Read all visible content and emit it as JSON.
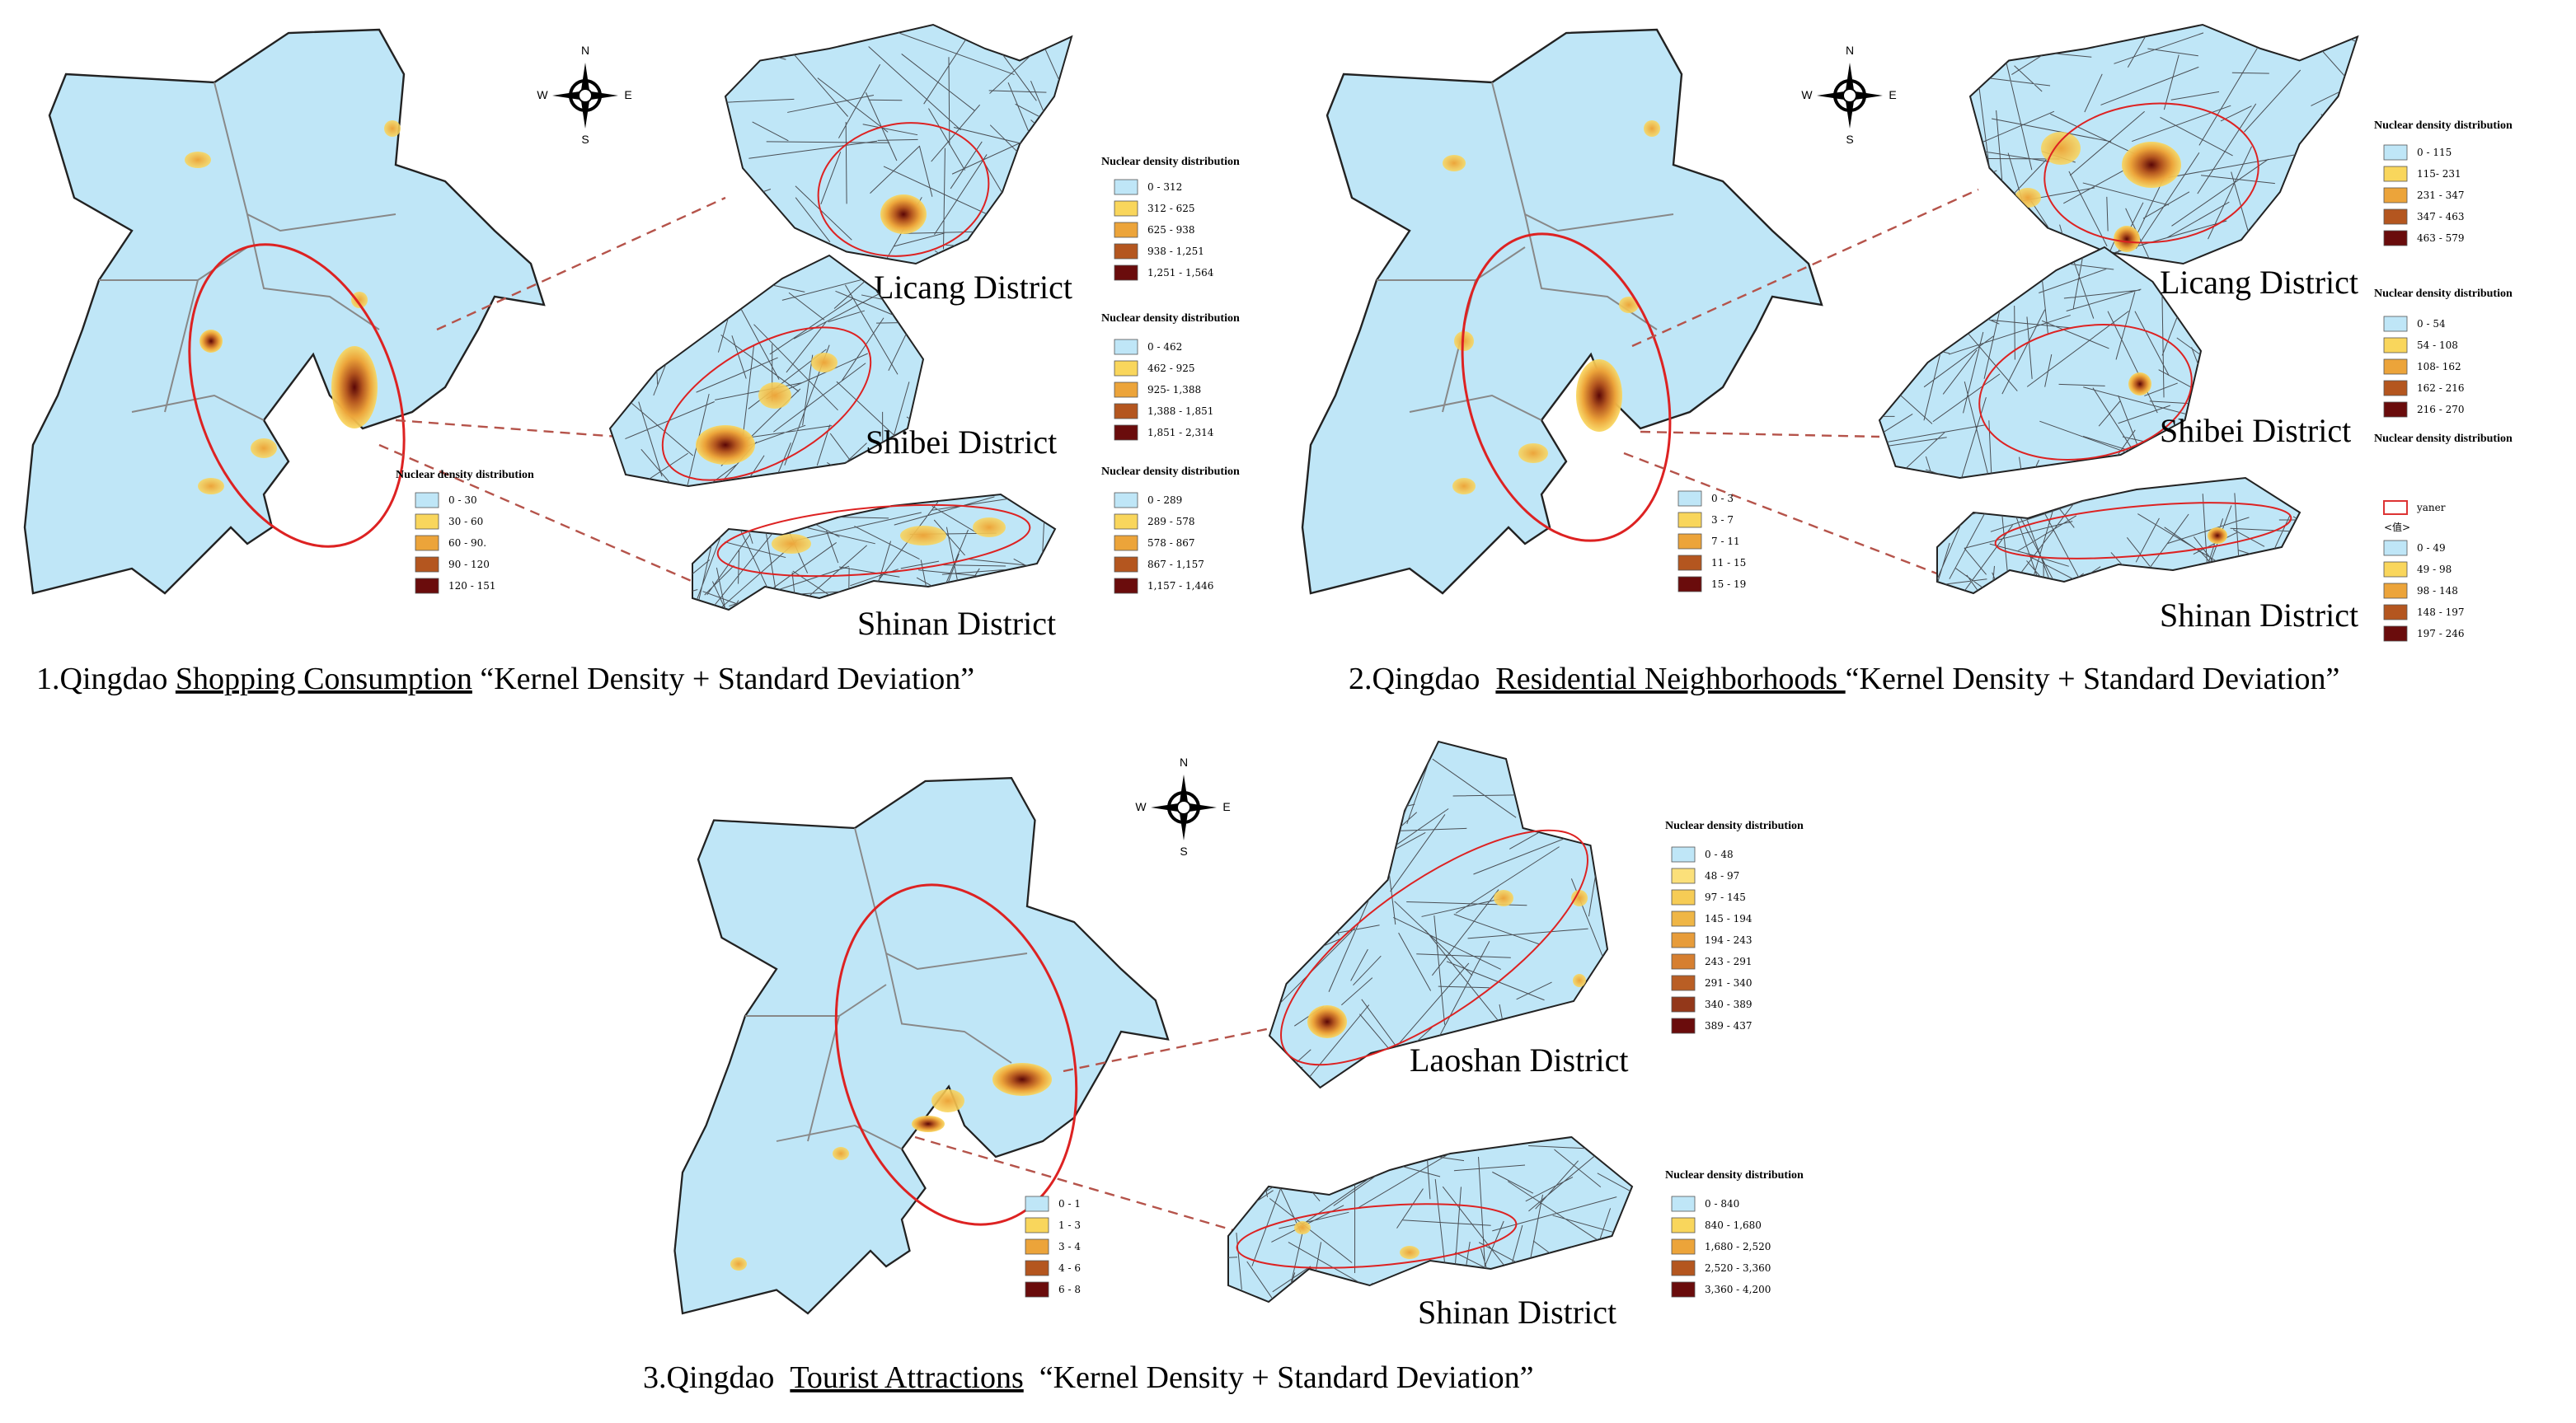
{
  "panels": [
    {
      "compass": {
        "n": "N",
        "s": "S",
        "w": "W",
        "e": "E"
      },
      "overview_legend": {
        "title": "Nuclear density distribution",
        "classes": [
          "0 - 30",
          "30 - 60",
          "60 - 90.",
          "90 - 120",
          "120 - 151"
        ]
      },
      "districts": [
        {
          "name": "Licang District",
          "legend": {
            "title": "Nuclear density distribution",
            "classes": [
              "0 - 312",
              "312 - 625",
              "625 - 938",
              "938 - 1,251",
              "1,251 - 1,564"
            ]
          }
        },
        {
          "name": "Shibei District",
          "legend": {
            "title": "Nuclear density distribution",
            "classes": [
              "0 - 462",
              "462 - 925",
              "925- 1,388",
              "1,388 - 1,851",
              "1,851 - 2,314"
            ]
          }
        },
        {
          "name": "Shinan District",
          "legend": {
            "title": "Nuclear density distribution",
            "classes": [
              "0 - 289",
              "289 - 578",
              "578 - 867",
              "867 - 1,157",
              "1,157 - 1,446"
            ]
          }
        }
      ],
      "caption": {
        "prefix": "1.Qingdao ",
        "topic": "Shopping Consumption",
        "suffix": " “Kernel Density + Standard Deviation”"
      }
    },
    {
      "compass": {
        "n": "N",
        "s": "S",
        "w": "W",
        "e": "E"
      },
      "overview_legend": {
        "classes": [
          "0 - 3",
          "3 - 7",
          "7 - 11",
          "11 - 15",
          "15 - 19"
        ]
      },
      "districts": [
        {
          "name": "Licang District",
          "legend": {
            "title": "Nuclear density distribution",
            "classes": [
              "0 - 115",
              "115- 231",
              "231 - 347",
              "347 - 463",
              "463 - 579"
            ]
          }
        },
        {
          "name": "Shibei District",
          "legend": {
            "title": "Nuclear density distribution",
            "classes": [
              "0 - 54",
              "54 - 108",
              "108- 162",
              "162 - 216",
              "216 - 270"
            ]
          }
        },
        {
          "name": "Shinan District",
          "legend": {
            "title": "Nuclear density distribution",
            "extra": [
              "yaner",
              "<值>"
            ],
            "classes": [
              "0 - 49",
              "49 - 98",
              "98 - 148",
              "148 - 197",
              "197 - 246"
            ]
          }
        }
      ],
      "caption": {
        "prefix": "2.Qingdao  ",
        "topic": "Residential Neighborhoods ",
        "suffix": "“Kernel Density + Standard Deviation”"
      }
    },
    {
      "compass": {
        "n": "N",
        "s": "S",
        "w": "W",
        "e": "E"
      },
      "overview_legend": {
        "classes": [
          "0 - 1",
          "1 - 3",
          "3 - 4",
          "4 - 6",
          "6 - 8"
        ]
      },
      "districts": [
        {
          "name": "Laoshan District",
          "legend": {
            "title": "Nuclear density distribution",
            "classes": [
              "0 - 48",
              "48 - 97",
              "97 - 145",
              "145 - 194",
              "194 - 243",
              "243 - 291",
              "291 - 340",
              "340 - 389",
              "389 - 437"
            ]
          }
        },
        {
          "name": "Shinan District",
          "legend": {
            "title": "Nuclear density distribution",
            "classes": [
              "0 - 840",
              "840 - 1,680",
              "1,680 - 2,520",
              "2,520 - 3,360",
              "3,360 - 4,200"
            ]
          }
        }
      ],
      "caption": {
        "prefix": "3.Qingdao  ",
        "topic": "Tourist Attractions",
        "suffix": "  “Kernel Density + Standard Deviation”"
      }
    }
  ]
}
